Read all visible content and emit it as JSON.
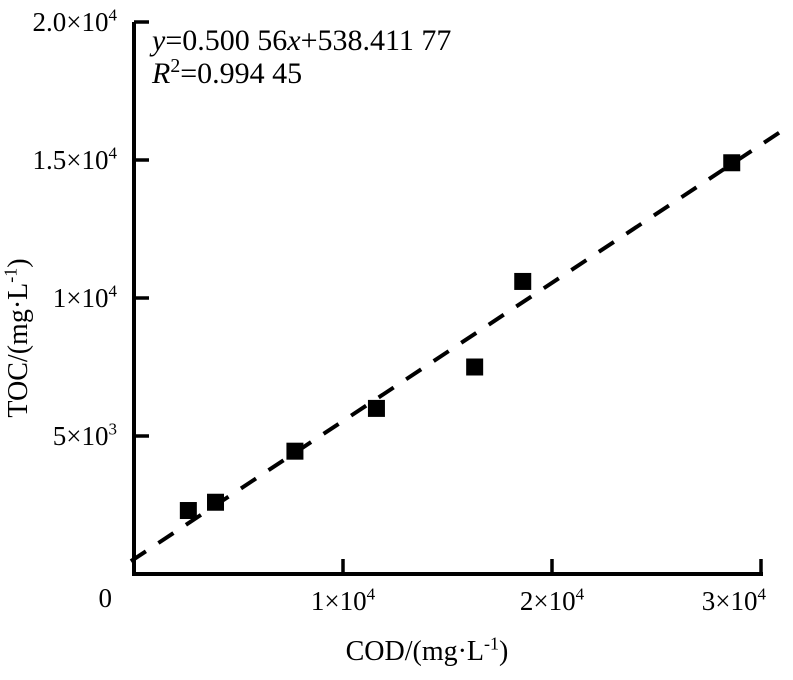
{
  "colors": {
    "ink": "#000000",
    "background": "#ffffff"
  },
  "annotation": {
    "equation_text": "y=0.500 56x+538.411 77",
    "r_squared_text": "R²=0.994 45",
    "equation_parts": [
      {
        "t": "y",
        "italic": true
      },
      {
        "t": "=0.500 56"
      },
      {
        "t": "x",
        "italic": true
      },
      {
        "t": "+538.411 77"
      }
    ],
    "r_squared_parts": [
      {
        "t": "R",
        "italic": true
      },
      {
        "t": "2",
        "sup": true
      },
      {
        "t": "=0.994 45"
      }
    ]
  },
  "chart_data": {
    "type": "scatter",
    "title": "",
    "xlabel": "COD/(mg·L^{-1})",
    "ylabel": "TOC/(mg·L^{-1})",
    "xlim": [
      0,
      31500
    ],
    "ylim": [
      0,
      20000
    ],
    "grid": false,
    "legend": "none",
    "x_ticks": [
      {
        "v": 10000,
        "label": "1×10^{4}"
      },
      {
        "v": 20000,
        "label": "2×10^{4}"
      },
      {
        "v": 30000,
        "label": "3×10^{4}"
      }
    ],
    "y_ticks": [
      {
        "v": 5000,
        "label": "5×10^{3}"
      },
      {
        "v": 10000,
        "label": "1×10^{4}"
      },
      {
        "v": 15000,
        "label": "1.5×10^{4}"
      },
      {
        "v": 20000,
        "label": "2.0×10^{4}"
      }
    ],
    "origin_label": "0",
    "marker": {
      "shape": "square",
      "color": "#000000",
      "size": 17
    },
    "points": [
      [
        2600,
        2300
      ],
      [
        3900,
        2600
      ],
      [
        7700,
        4450
      ],
      [
        11600,
        6000
      ],
      [
        16300,
        7500
      ],
      [
        18600,
        10600
      ],
      [
        28600,
        14900
      ]
    ],
    "fit": {
      "style": "dashed",
      "slope": 0.50056,
      "intercept": 538.41177,
      "x_range": [
        -150,
        31050
      ]
    }
  }
}
